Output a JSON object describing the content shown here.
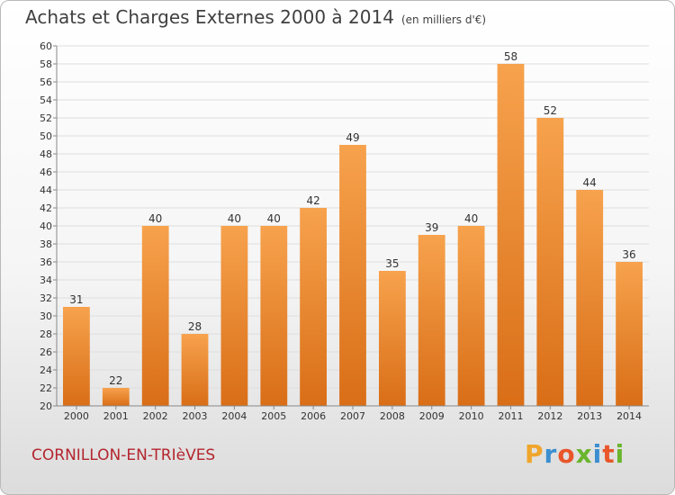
{
  "title": "Achats et Charges Externes 2000 à 2014",
  "unit_note": "(en milliers d'€)",
  "location": "CORNILLON-EN-TRIèVES",
  "brand": {
    "letters": [
      "P",
      "r",
      "o",
      "x",
      "i",
      "t",
      "i"
    ],
    "colors": [
      "#f0a52c",
      "#3b8ed0",
      "#e8562a",
      "#6ab52d",
      "#3b8ed0",
      "#e8562a",
      "#6ab52d"
    ]
  },
  "colors": {
    "bar_top": "#f7a24d",
    "bar_bottom": "#d96e17",
    "label": "#333333"
  },
  "chart_data": {
    "type": "bar",
    "categories": [
      "2000",
      "2001",
      "2002",
      "2003",
      "2004",
      "2005",
      "2006",
      "2007",
      "2008",
      "2009",
      "2010",
      "2011",
      "2012",
      "2013",
      "2014"
    ],
    "values": [
      31,
      22,
      40,
      28,
      40,
      40,
      42,
      49,
      35,
      39,
      40,
      58,
      52,
      44,
      36
    ],
    "ylim": [
      20,
      60
    ],
    "yticks": [
      20,
      22,
      24,
      26,
      28,
      30,
      32,
      34,
      36,
      38,
      40,
      42,
      44,
      46,
      48,
      50,
      52,
      54,
      56,
      58,
      60
    ],
    "grid": true,
    "data_labels": true
  }
}
